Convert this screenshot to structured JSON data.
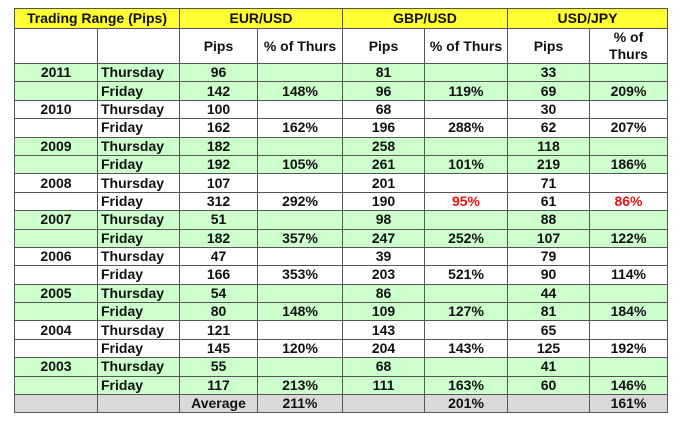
{
  "header": {
    "title": "Trading Range (Pips)",
    "pairs": [
      "EUR/USD",
      "GBP/USD",
      "USD/JPY"
    ]
  },
  "subheader": {
    "pips": "Pips",
    "pct": "% of Thurs"
  },
  "colors": {
    "header": "#ffff33",
    "green_rows": "#ccffcc",
    "average_row": "#d9d9d9",
    "below_100": "#ee1111"
  },
  "rows": [
    {
      "year": "2011",
      "green": true,
      "thu": [
        "96",
        "81",
        "33"
      ],
      "fri": [
        "142",
        "96",
        "69"
      ],
      "pct": [
        "148%",
        "119%",
        "209%"
      ]
    },
    {
      "year": "2010",
      "green": false,
      "thu": [
        "100",
        "68",
        "30"
      ],
      "fri": [
        "162",
        "196",
        "62"
      ],
      "pct": [
        "162%",
        "288%",
        "207%"
      ]
    },
    {
      "year": "2009",
      "green": true,
      "thu": [
        "182",
        "258",
        "118"
      ],
      "fri": [
        "192",
        "261",
        "219"
      ],
      "pct": [
        "105%",
        "101%",
        "186%"
      ]
    },
    {
      "year": "2008",
      "green": false,
      "thu": [
        "107",
        "201",
        "71"
      ],
      "fri": [
        "312",
        "190",
        "61"
      ],
      "pct": [
        "292%",
        "95%",
        "86%"
      ],
      "red": [
        false,
        true,
        true
      ]
    },
    {
      "year": "2007",
      "green": true,
      "thu": [
        "51",
        "98",
        "88"
      ],
      "fri": [
        "182",
        "247",
        "107"
      ],
      "pct": [
        "357%",
        "252%",
        "122%"
      ]
    },
    {
      "year": "2006",
      "green": false,
      "thu": [
        "47",
        "39",
        "79"
      ],
      "fri": [
        "166",
        "203",
        "90"
      ],
      "pct": [
        "353%",
        "521%",
        "114%"
      ]
    },
    {
      "year": "2005",
      "green": true,
      "thu": [
        "54",
        "86",
        "44"
      ],
      "fri": [
        "80",
        "109",
        "81"
      ],
      "pct": [
        "148%",
        "127%",
        "184%"
      ]
    },
    {
      "year": "2004",
      "green": false,
      "thu": [
        "121",
        "143",
        "65"
      ],
      "fri": [
        "145",
        "204",
        "125"
      ],
      "pct": [
        "120%",
        "143%",
        "192%"
      ]
    },
    {
      "year": "2003",
      "green": true,
      "thu": [
        "55",
        "68",
        "41"
      ],
      "fri": [
        "117",
        "111",
        "60"
      ],
      "pct": [
        "213%",
        "163%",
        "146%"
      ]
    }
  ],
  "labels": {
    "thursday": "Thursday",
    "friday": "Friday",
    "average": "Average"
  },
  "average": [
    "211%",
    "201%",
    "161%"
  ]
}
